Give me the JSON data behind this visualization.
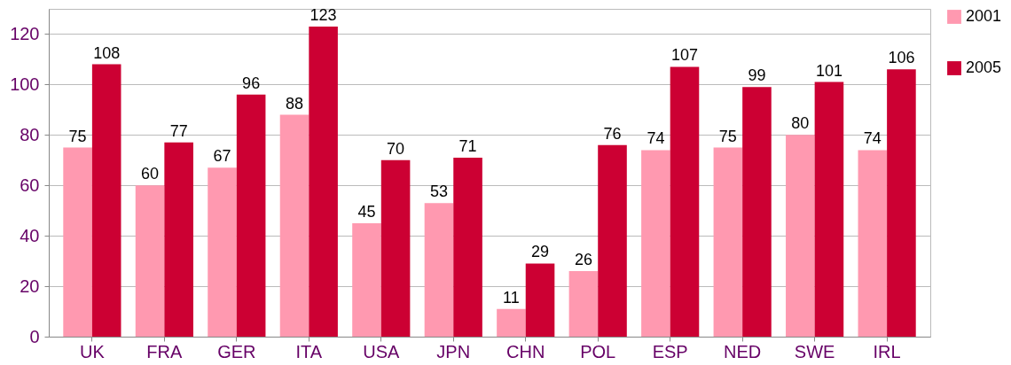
{
  "chart_data": {
    "type": "bar",
    "categories": [
      "UK",
      "FRA",
      "GER",
      "ITA",
      "USA",
      "JPN",
      "CHN",
      "POL",
      "ESP",
      "NED",
      "SWE",
      "IRL"
    ],
    "series": [
      {
        "name": "2001",
        "color": "#ff99b0",
        "values": [
          75,
          60,
          67,
          88,
          45,
          53,
          11,
          26,
          74,
          75,
          80,
          74
        ]
      },
      {
        "name": "2005",
        "color": "#cc0033",
        "values": [
          108,
          77,
          96,
          123,
          70,
          71,
          29,
          76,
          107,
          99,
          101,
          106
        ]
      }
    ],
    "ylim": [
      0,
      130
    ],
    "yticks": [
      0,
      20,
      40,
      60,
      80,
      100,
      120
    ],
    "grid": "y",
    "legend": "right",
    "data_labels": true
  }
}
